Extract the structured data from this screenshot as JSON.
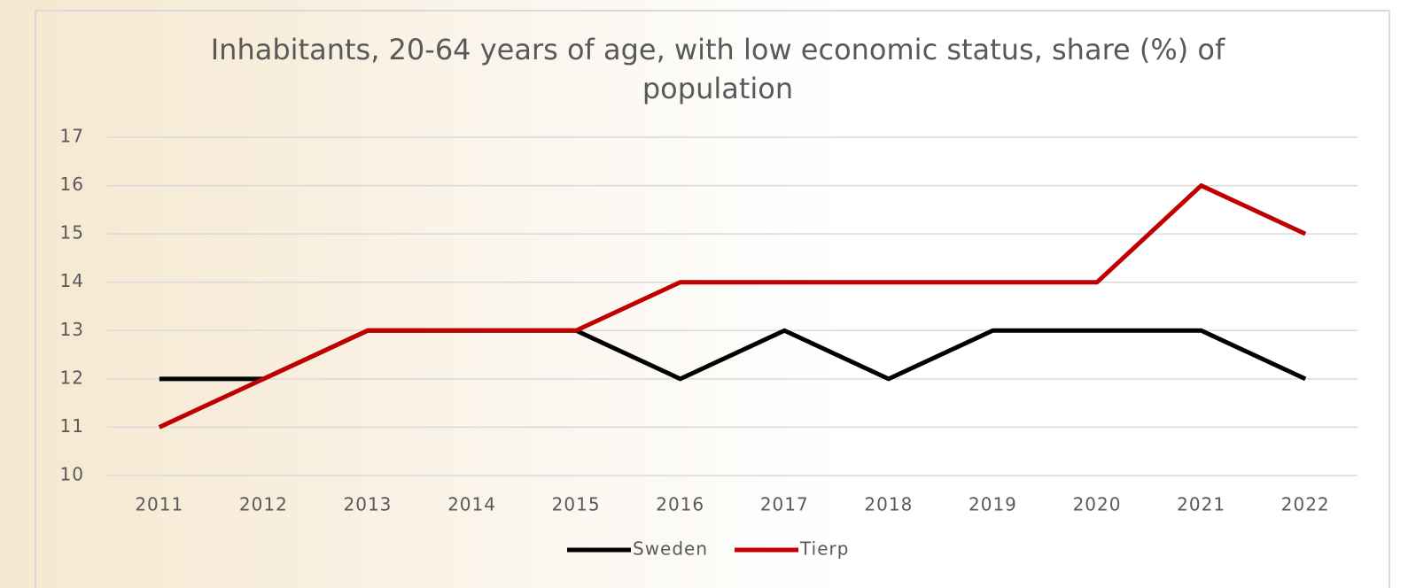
{
  "chart_data": {
    "type": "line",
    "title": "Inhabitants, 20-64 years of age, with low economic status, share (%) of population",
    "categories": [
      "2011",
      "2012",
      "2013",
      "2014",
      "2015",
      "2016",
      "2017",
      "2018",
      "2019",
      "2020",
      "2021",
      "2022"
    ],
    "series": [
      {
        "name": "Sweden",
        "color": "#000000",
        "values": [
          12,
          12,
          13,
          13,
          13,
          12,
          13,
          12,
          13,
          13,
          13,
          12
        ]
      },
      {
        "name": "Tierp",
        "color": "#c00000",
        "values": [
          11,
          12,
          13,
          13,
          13,
          14,
          14,
          14,
          14,
          14,
          16,
          15
        ]
      }
    ],
    "ylim": [
      10,
      17
    ],
    "yticks": [
      10,
      11,
      12,
      13,
      14,
      15,
      16,
      17
    ],
    "grid": true,
    "legend": "bottom"
  }
}
